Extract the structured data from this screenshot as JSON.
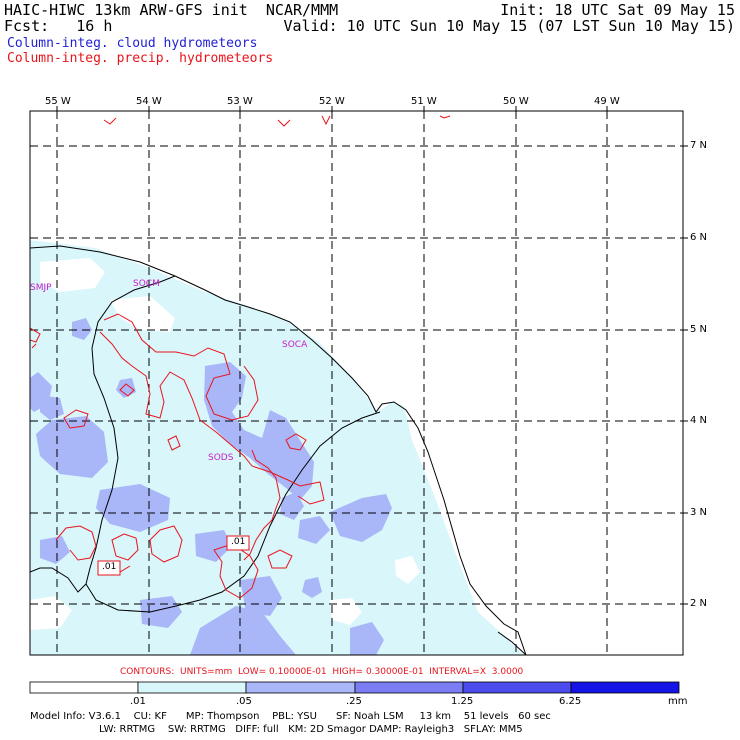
{
  "header": {
    "left_line1": "HAIC-HIWC 13km ARW-GFS init  NCAR/MMM",
    "left_line2": "Fcst:   16 h",
    "right_line1": "Init: 18 UTC Sat 09 May 15",
    "right_line2": "Valid: 10 UTC Sun 10 May 15 (07 LST Sun 10 May 15)"
  },
  "legend": {
    "cloud": "Column-integ. cloud hydrometeors",
    "precip": "Column-integ. precip. hydrometeors",
    "cloud_color": "#1f1fd6",
    "precip_color": "#e8141c"
  },
  "axes": {
    "lon_labels": [
      "55 W",
      "54 W",
      "53 W",
      "52 W",
      "51 W",
      "50 W",
      "49 W"
    ],
    "lat_labels": [
      "7 N",
      "6 N",
      "5 N",
      "4 N",
      "3 N",
      "2 N"
    ]
  },
  "stations": [
    "SMJP",
    "SOCM",
    "SOCA",
    "SODS"
  ],
  "contour_labels": [
    ".01",
    ".01"
  ],
  "contours_info": "CONTOURS:  UNITS=mm  LOW= 0.10000E-01  HIGH= 0.30000E-01  INTERVAL=X  3.0000",
  "colorbar": {
    "levels": [
      ".01",
      ".05",
      ".25",
      "1.25",
      "6.25"
    ],
    "units": "mm",
    "colors": [
      "#ffffff",
      "#d9f6fb",
      "#a9b6f7",
      "#7a7df3",
      "#4b4bee",
      "#1414e6"
    ]
  },
  "model_info": {
    "line1": "Model Info: V3.6.1    CU: KF      MP: Thompson    PBL: YSU      SF: Noah LSM     13 km    51 levels   60 sec",
    "line2": "LW: RRTMG    SW: RRTMG   DIFF: full   KM: 2D Smagor DAMP: Rayleigh3   SFLAY: MM5"
  }
}
